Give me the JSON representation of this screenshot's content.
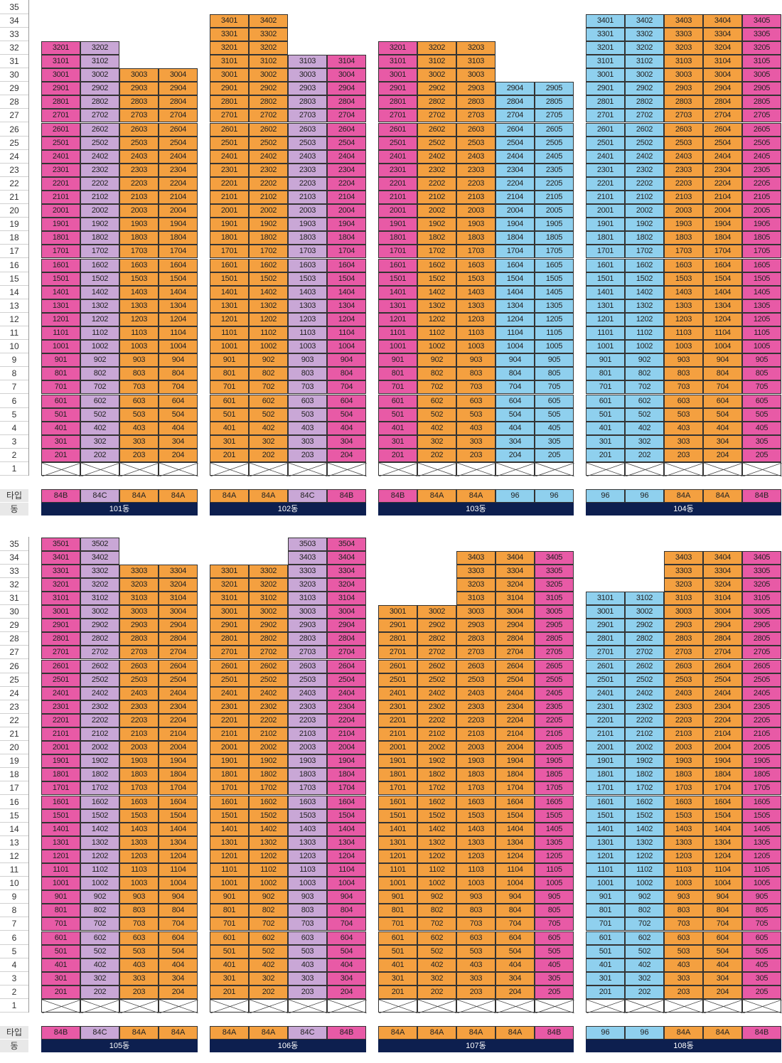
{
  "labels": {
    "type": "타입",
    "dong": "동"
  },
  "colors": {
    "84A": "#f4a040",
    "84B": "#e85aa6",
    "84C": "#c9a7d6",
    "96": "#8fd0ee"
  },
  "panels": [
    {
      "buildings": [
        {
          "name": "101동",
          "types": [
            "84B",
            "84C",
            "84A",
            "84A"
          ],
          "tops": [
            32,
            32,
            30,
            30
          ]
        },
        {
          "name": "102동",
          "types": [
            "84A",
            "84A",
            "84C",
            "84B"
          ],
          "tops": [
            34,
            34,
            31,
            31
          ]
        },
        {
          "name": "103동",
          "types": [
            "84B",
            "84A",
            "84A",
            "96",
            "96"
          ],
          "tops": [
            32,
            32,
            32,
            29,
            29
          ]
        },
        {
          "name": "104동",
          "types": [
            "96",
            "96",
            "84A",
            "84A",
            "84B"
          ],
          "tops": [
            34,
            34,
            34,
            34,
            34
          ]
        }
      ]
    },
    {
      "buildings": [
        {
          "name": "105동",
          "types": [
            "84B",
            "84C",
            "84A",
            "84A"
          ],
          "tops": [
            35,
            35,
            33,
            33
          ]
        },
        {
          "name": "106동",
          "types": [
            "84A",
            "84A",
            "84C",
            "84B"
          ],
          "tops": [
            33,
            33,
            35,
            35
          ]
        },
        {
          "name": "107동",
          "types": [
            "84A",
            "84A",
            "84A",
            "84A",
            "84B"
          ],
          "tops": [
            30,
            30,
            34,
            34,
            34
          ]
        },
        {
          "name": "108동",
          "types": [
            "96",
            "96",
            "84A",
            "84A",
            "84B"
          ],
          "tops": [
            31,
            31,
            34,
            34,
            34
          ]
        }
      ]
    }
  ]
}
